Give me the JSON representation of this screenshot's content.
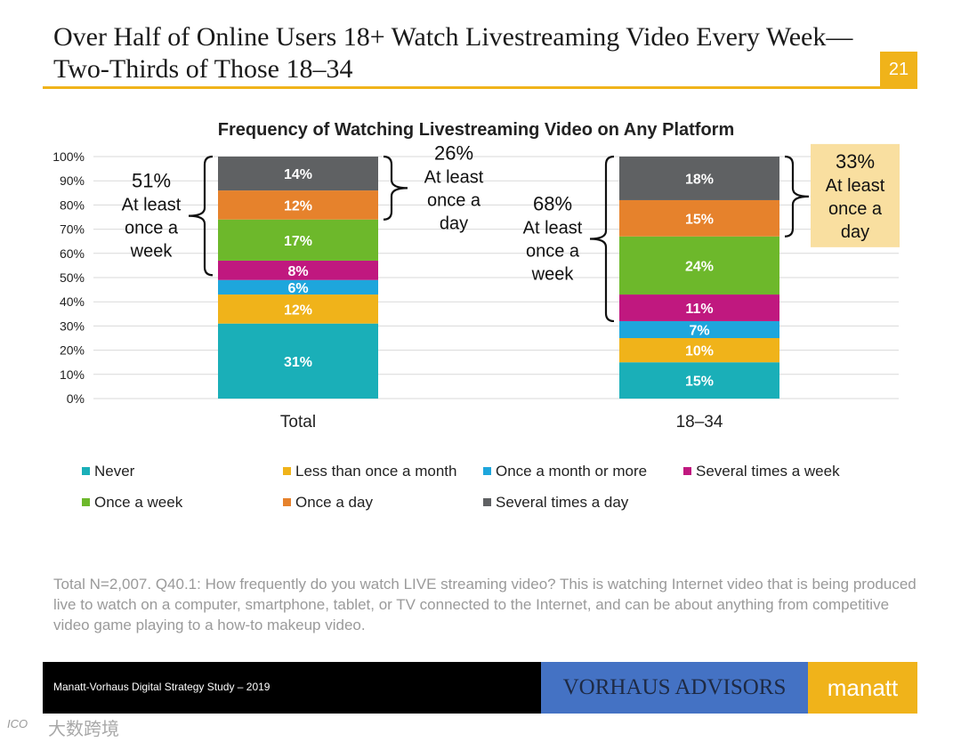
{
  "slide": {
    "title": "Over Half of Online Users 18+ Watch Livestreaming Video Every Week—Two-Thirds of Those 18–34",
    "page_number": "21",
    "footnote": "Total N=2,007. Q40.1: How frequently do you watch LIVE streaming video? This is watching Internet video that is being produced live to watch on a computer, smartphone, tablet, or TV connected to the Internet, and can be about anything from competitive video game playing to a how-to makeup video.",
    "footer_text": "Manatt-Vorhaus Digital Strategy Study – 2019",
    "vorhaus_logo": "VORHAUS ADVISORS",
    "manatt_logo": "manatt",
    "watermark_text": "大数跨境",
    "watermark_logo": "ICO"
  },
  "chart_data": {
    "type": "bar",
    "stacked": true,
    "title": "Frequency of Watching Livestreaming Video on Any Platform",
    "categories": [
      "Total",
      "18–34"
    ],
    "ylim": [
      0,
      100
    ],
    "yticks": [
      "0%",
      "10%",
      "20%",
      "30%",
      "40%",
      "50%",
      "60%",
      "70%",
      "80%",
      "90%",
      "100%"
    ],
    "grid": true,
    "legend_position": "bottom",
    "series": [
      {
        "name": "Never",
        "color": "#1AAFB8",
        "values": [
          31,
          15
        ],
        "labels": [
          "31%",
          "15%"
        ]
      },
      {
        "name": "Less than once a month",
        "color": "#F0B31A",
        "values": [
          12,
          10
        ],
        "labels": [
          "12%",
          "10%"
        ]
      },
      {
        "name": "Once a month or more",
        "color": "#1EA6DC",
        "values": [
          6,
          7
        ],
        "labels": [
          "6%",
          "7%"
        ]
      },
      {
        "name": "Several times a week",
        "color": "#C0187F",
        "values": [
          8,
          11
        ],
        "labels": [
          "8%",
          "11%"
        ]
      },
      {
        "name": "Once a week",
        "color": "#6DB82B",
        "values": [
          17,
          24
        ],
        "labels": [
          "17%",
          "24%"
        ]
      },
      {
        "name": "Once a day",
        "color": "#E6822C",
        "values": [
          12,
          15
        ],
        "labels": [
          "12%",
          "15%"
        ]
      },
      {
        "name": "Several times a day",
        "color": "#5F6163",
        "values": [
          14,
          18
        ],
        "labels": [
          "14%",
          "18%"
        ]
      }
    ],
    "annotations": [
      {
        "category": "Total",
        "side": "left",
        "range": [
          51,
          100
        ],
        "lines": [
          "51%",
          "At least",
          "once a",
          "week"
        ],
        "highlight": false
      },
      {
        "category": "Total",
        "side": "right",
        "range": [
          74,
          100
        ],
        "lines": [
          "26%",
          "At least",
          "once a",
          "day"
        ],
        "highlight": false
      },
      {
        "category": "18–34",
        "side": "left",
        "range": [
          32,
          100
        ],
        "lines": [
          "68%",
          "At least",
          "once a",
          "week"
        ],
        "highlight": false
      },
      {
        "category": "18–34",
        "side": "right",
        "range": [
          67,
          100
        ],
        "lines": [
          "33%",
          "At least",
          "once a",
          "day"
        ],
        "highlight": true
      }
    ]
  }
}
